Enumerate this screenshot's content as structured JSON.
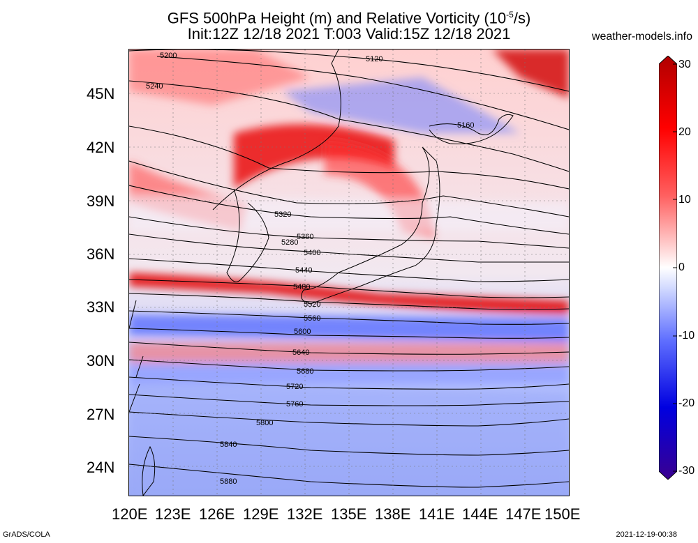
{
  "title_line1": "GFS 500hPa Height (m) and Relative Vorticity (10",
  "title_exp": "-5",
  "title_line1_end": "/s)",
  "title_line2": "Init:12Z 12/18 2021 T:003 Valid:15Z 12/18 2021",
  "website": "weather-models.info",
  "footer_left": "GrADS/COLA",
  "footer_right": "2021-12-19-00:38",
  "lat_labels": [
    "45N",
    "42N",
    "39N",
    "36N",
    "33N",
    "30N",
    "27N",
    "24N"
  ],
  "lon_labels": [
    "120E",
    "123E",
    "126E",
    "129E",
    "132E",
    "135E",
    "138E",
    "141E",
    "144E",
    "147E",
    "150E"
  ],
  "colorbar": {
    "labels": [
      "30",
      "20",
      "10",
      "0",
      "-10",
      "-20",
      "-30"
    ],
    "colors": [
      "#3a00a0",
      "#0000ff",
      "#6080ff",
      "#c8d4ff",
      "#ffffff",
      "#ffc8c8",
      "#ff5050",
      "#ff0000",
      "#c00000"
    ]
  },
  "contours": [
    {
      "label": "5120"
    },
    {
      "label": "5160"
    },
    {
      "label": "5200"
    },
    {
      "label": "5240"
    },
    {
      "label": "5280"
    },
    {
      "label": "5320"
    },
    {
      "label": "5360"
    },
    {
      "label": "5400"
    },
    {
      "label": "5440"
    },
    {
      "label": "5480"
    },
    {
      "label": "5520"
    },
    {
      "label": "5560"
    },
    {
      "label": "5600"
    },
    {
      "label": "5640"
    },
    {
      "label": "5680"
    },
    {
      "label": "5720"
    },
    {
      "label": "5760"
    },
    {
      "label": "5800"
    },
    {
      "label": "5840"
    },
    {
      "label": "5880"
    }
  ]
}
